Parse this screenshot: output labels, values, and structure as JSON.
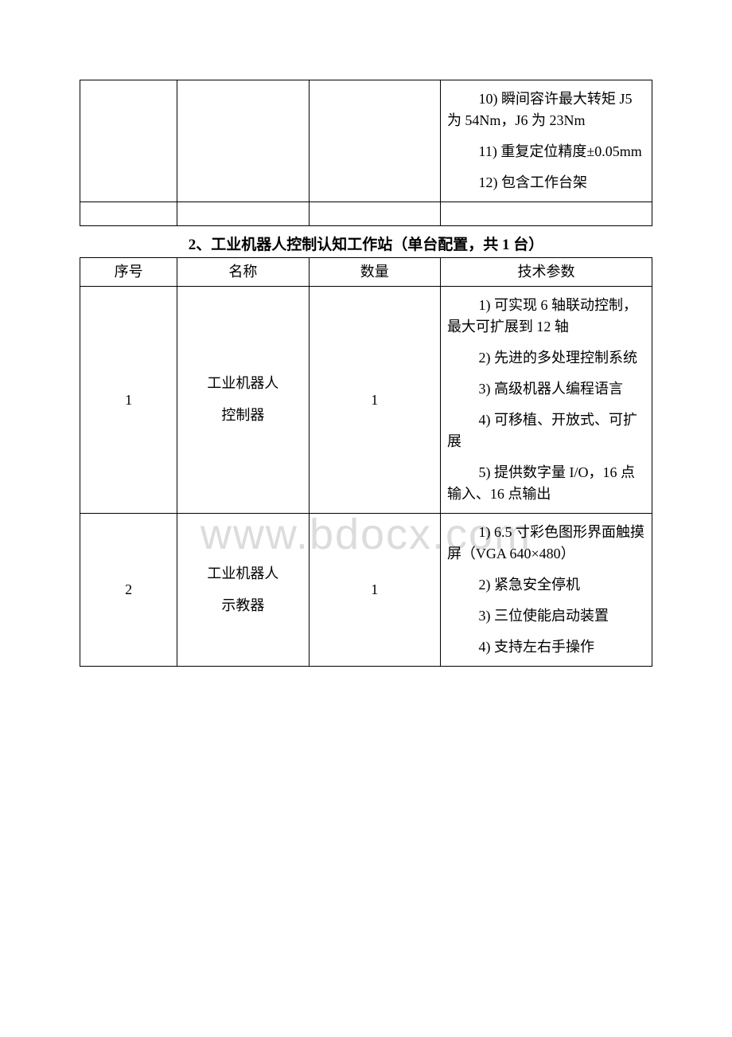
{
  "watermark": "www.bdocx.com",
  "table1": {
    "params": {
      "p10": "10) 瞬间容许最大转矩 J5 为 54Nm，J6 为 23Nm",
      "p11": "11) 重复定位精度±0.05mm",
      "p12": "12) 包含工作台架"
    }
  },
  "section2_title": "2、工业机器人控制认知工作站（单台配置，共 1 台）",
  "table2": {
    "headers": {
      "h1": "序号",
      "h2": "名称",
      "h3": "数量",
      "h4": "技术参数"
    },
    "row1": {
      "seq": "1",
      "name_line1": "工业机器人",
      "name_line2": "控制器",
      "qty": "1",
      "params": {
        "p1": "1) 可实现 6 轴联动控制，最大可扩展到 12 轴",
        "p2": "2) 先进的多处理控制系统",
        "p3": "3) 高级机器人编程语言",
        "p4": "4) 可移植、开放式、可扩展",
        "p5": "5) 提供数字量 I/O，16 点输入、16 点输出"
      }
    },
    "row2": {
      "seq": "2",
      "name_line1": "工业机器人",
      "name_line2": "示教器",
      "qty": "1",
      "params": {
        "p1": "1) 6.5 寸彩色图形界面触摸屏（VGA 640×480）",
        "p2": "2) 紧急安全停机",
        "p3": "3) 三位使能启动装置",
        "p4": "4) 支持左右手操作"
      }
    }
  }
}
